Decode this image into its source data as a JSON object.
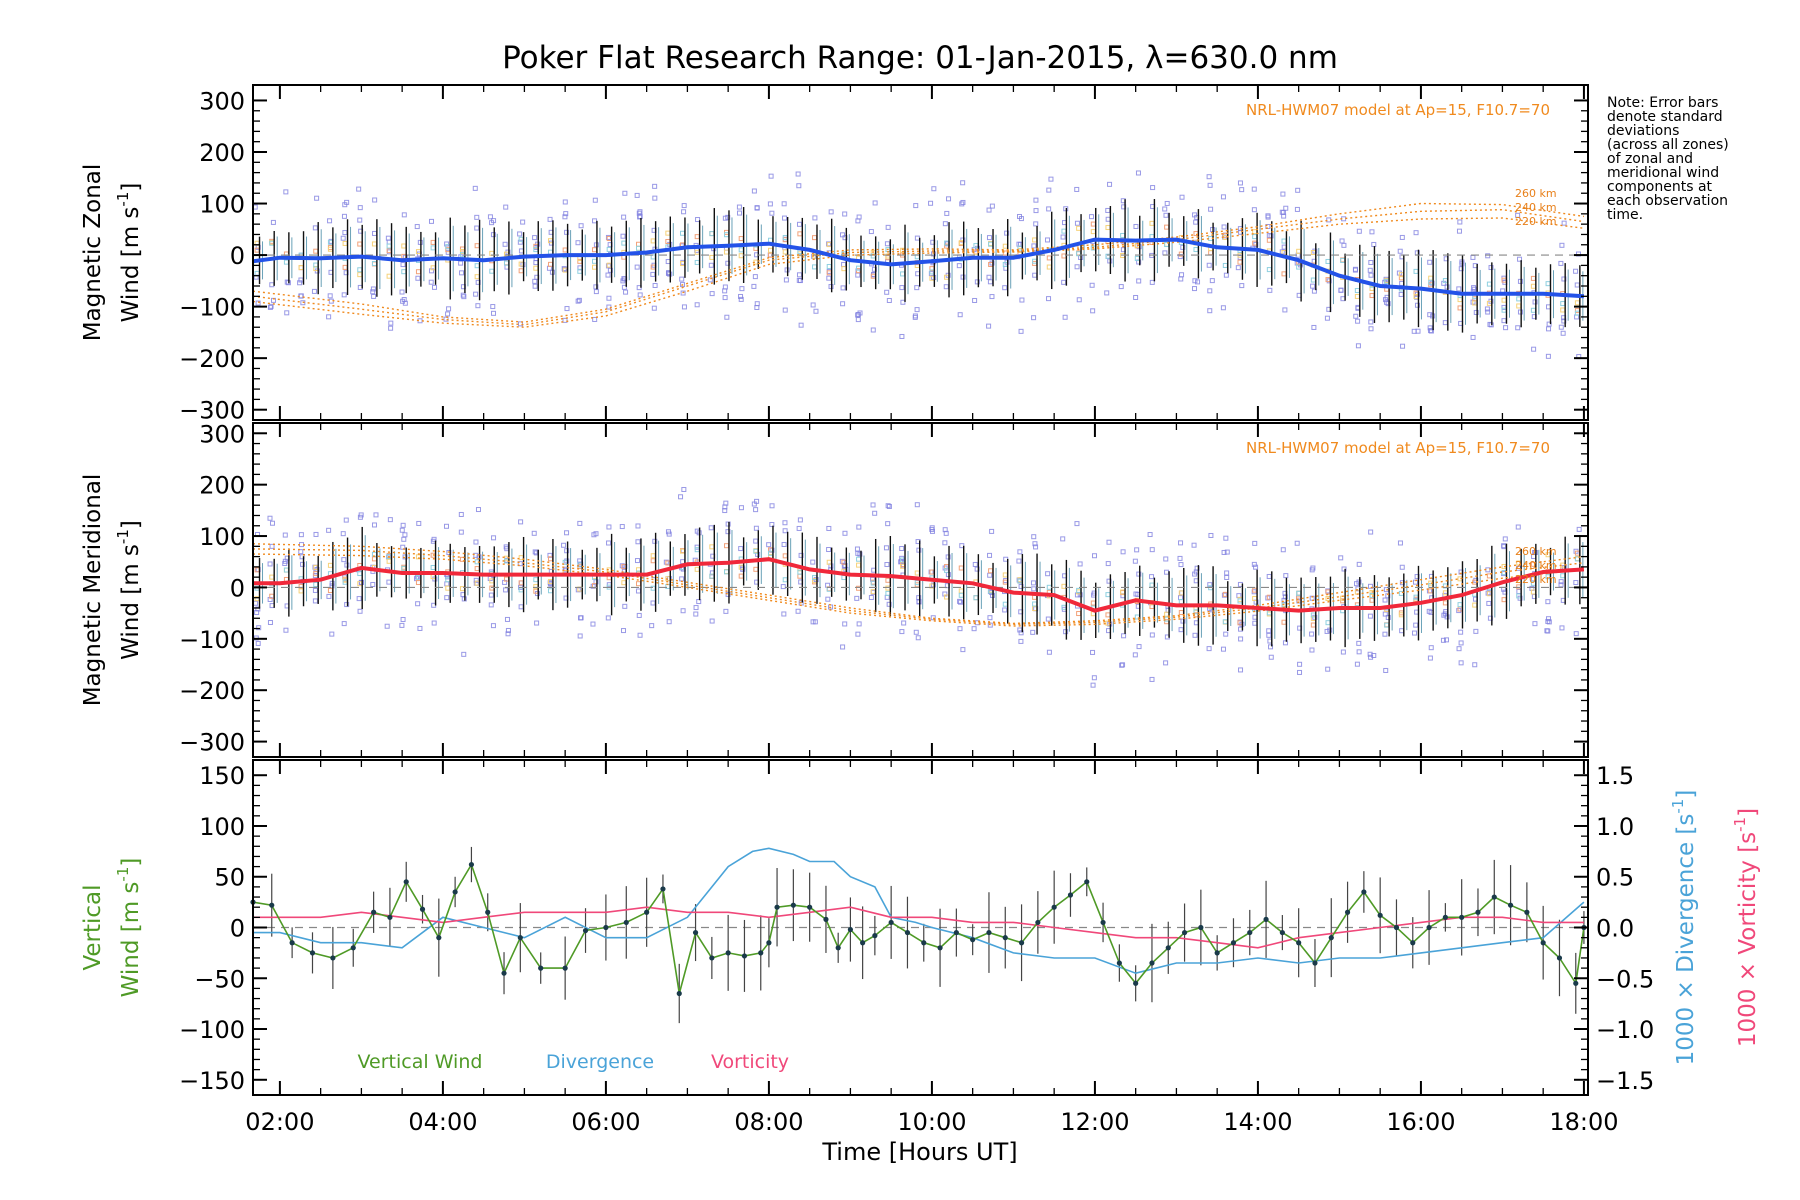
{
  "title": "Poker Flat Research Range: 01-Jan-2015, λ=630.0 nm",
  "note": [
    "Note: Error bars",
    "denote standard",
    "deviations",
    "(across all zones)",
    "of zonal and",
    "meridional wind",
    "components at",
    "each observation",
    "time."
  ],
  "colors": {
    "zonal": "#2352e8",
    "meridional": "#f0283a",
    "vertical": "#4f9a26",
    "divergence": "#4aa3d8",
    "vorticity": "#f0487a",
    "model": "#f08a1e",
    "scatter": "#8080e0"
  },
  "chart_data": [
    {
      "type": "line",
      "panel": "zonal",
      "ylabel_line1": "Magnetic Zonal",
      "ylabel_line2": "Wind [m s",
      "ylabel_sup": "-1",
      "ylabel_end": "]",
      "ylim": [
        -320,
        330
      ],
      "yticks": [
        "300",
        "200",
        "100",
        "0",
        "−100",
        "−200",
        "−300"
      ],
      "ytick_values": [
        300,
        200,
        100,
        0,
        -100,
        -200,
        -300
      ],
      "model_label": "NRL-HWM07 model at Ap=15, F10.7=70",
      "altitude_labels": [
        "260 km",
        "240 km",
        "220 km"
      ],
      "series": [
        {
          "x": [
            1.67,
            2.0,
            2.5,
            3.0,
            3.5,
            4.0,
            4.5,
            5.0,
            5.5,
            6.0,
            6.5,
            7.0,
            7.5,
            8.0,
            8.5,
            9.0,
            9.5,
            10.0,
            10.5,
            11.0,
            11.5,
            12.0,
            12.5,
            13.0,
            13.5,
            14.0,
            14.5,
            15.0,
            15.5,
            16.0,
            16.5,
            17.0,
            17.5,
            18.0
          ],
          "y": [
            -12,
            -5,
            -6,
            -3,
            -10,
            -6,
            -10,
            -3,
            0,
            0,
            5,
            15,
            18,
            22,
            10,
            -10,
            -18,
            -12,
            -5,
            -5,
            10,
            30,
            28,
            30,
            15,
            10,
            -10,
            -40,
            -60,
            -65,
            -75,
            -75,
            -75,
            -80
          ]
        }
      ],
      "models": [
        {
          "name": "260 km",
          "x": [
            1.67,
            3,
            4,
            5,
            6,
            7,
            8,
            9,
            10,
            11,
            12,
            13,
            14,
            15,
            16,
            17,
            18
          ],
          "y": [
            -70,
            -95,
            -120,
            -130,
            -105,
            -55,
            -5,
            10,
            12,
            10,
            20,
            35,
            55,
            80,
            100,
            98,
            75
          ]
        },
        {
          "name": "240 km",
          "x": [
            1.67,
            3,
            4,
            5,
            6,
            7,
            8,
            9,
            10,
            11,
            12,
            13,
            14,
            15,
            16,
            17,
            18
          ],
          "y": [
            -80,
            -105,
            -125,
            -135,
            -110,
            -60,
            -10,
            5,
            8,
            8,
            15,
            30,
            50,
            70,
            85,
            88,
            65
          ]
        },
        {
          "name": "220 km",
          "x": [
            1.67,
            3,
            4,
            5,
            6,
            7,
            8,
            9,
            10,
            11,
            12,
            13,
            14,
            15,
            16,
            17,
            18
          ],
          "y": [
            -90,
            -115,
            -132,
            -140,
            -118,
            -70,
            -18,
            0,
            4,
            6,
            12,
            25,
            42,
            60,
            70,
            72,
            52
          ]
        }
      ]
    },
    {
      "type": "line",
      "panel": "meridional",
      "ylabel_line1": "Magnetic Meridional",
      "ylabel_line2": "Wind [m s",
      "ylabel_sup": "-1",
      "ylabel_end": "]",
      "ylim": [
        -330,
        320
      ],
      "yticks": [
        "300",
        "200",
        "100",
        "0",
        "−100",
        "−200",
        "−300"
      ],
      "ytick_values": [
        300,
        200,
        100,
        0,
        -100,
        -200,
        -300
      ],
      "model_label": "NRL-HWM07 model at Ap=15, F10.7=70",
      "altitude_labels": [
        "260 km",
        "240 km",
        "220 km"
      ],
      "series": [
        {
          "x": [
            1.67,
            2.0,
            2.5,
            3.0,
            3.5,
            4.0,
            4.5,
            5.0,
            5.5,
            6.0,
            6.5,
            7.0,
            7.5,
            8.0,
            8.5,
            9.0,
            9.5,
            10.0,
            10.5,
            11.0,
            11.5,
            12.0,
            12.5,
            13.0,
            13.5,
            14.0,
            14.5,
            15.0,
            15.5,
            16.0,
            16.5,
            17.0,
            17.5,
            18.0
          ],
          "y": [
            8,
            8,
            15,
            38,
            28,
            28,
            25,
            25,
            25,
            25,
            25,
            45,
            48,
            55,
            35,
            25,
            22,
            15,
            8,
            -10,
            -15,
            -45,
            -25,
            -35,
            -35,
            -40,
            -45,
            -40,
            -40,
            -30,
            -15,
            10,
            30,
            35
          ]
        }
      ],
      "models": [
        {
          "name": "260 km",
          "x": [
            1.67,
            3,
            4,
            5,
            6,
            7,
            8,
            9,
            10,
            11,
            12,
            13,
            14,
            15,
            16,
            17,
            18
          ],
          "y": [
            85,
            80,
            70,
            55,
            35,
            10,
            -15,
            -40,
            -60,
            -70,
            -65,
            -55,
            -35,
            -10,
            15,
            40,
            60
          ]
        },
        {
          "name": "240 km",
          "x": [
            1.67,
            3,
            4,
            5,
            6,
            7,
            8,
            9,
            10,
            11,
            12,
            13,
            14,
            15,
            16,
            17,
            18
          ],
          "y": [
            75,
            72,
            62,
            48,
            30,
            5,
            -20,
            -45,
            -62,
            -72,
            -68,
            -58,
            -40,
            -18,
            5,
            30,
            48
          ]
        },
        {
          "name": "220 km",
          "x": [
            1.67,
            3,
            4,
            5,
            6,
            7,
            8,
            9,
            10,
            11,
            12,
            13,
            14,
            15,
            16,
            17,
            18
          ],
          "y": [
            65,
            62,
            55,
            42,
            24,
            0,
            -25,
            -50,
            -65,
            -75,
            -72,
            -62,
            -46,
            -25,
            -5,
            18,
            35
          ]
        }
      ]
    },
    {
      "type": "line",
      "panel": "vertical",
      "ylabel_line1": "Vertical",
      "ylabel_line2": "Wind [m s",
      "ylabel_sup": "-1",
      "ylabel_end": "]",
      "ylim": [
        -165,
        165
      ],
      "yticks": [
        "150",
        "100",
        "50",
        "0",
        "−50",
        "−100",
        "−150"
      ],
      "ytick_values": [
        150,
        100,
        50,
        0,
        -50,
        -100,
        -150
      ],
      "y2label_div": "1000 × Divergence [s",
      "y2label_vor": "1000 × Vorticity [s",
      "y2lim": [
        -1.65,
        1.65
      ],
      "y2ticks": [
        "1.5",
        "1.0",
        "0.5",
        "0.0",
        "−0.5",
        "−1.0",
        "−1.5"
      ],
      "y2tick_values": [
        1.5,
        1.0,
        0.5,
        0.0,
        -0.5,
        -1.0,
        -1.5
      ],
      "legend": [
        "Vertical Wind",
        "Divergence",
        "Vorticity"
      ],
      "series": [
        {
          "name": "Vertical Wind",
          "x": [
            1.67,
            1.9,
            2.15,
            2.4,
            2.65,
            2.9,
            3.15,
            3.35,
            3.55,
            3.75,
            3.95,
            4.15,
            4.35,
            4.55,
            4.75,
            4.95,
            5.2,
            5.5,
            5.75,
            6.0,
            6.25,
            6.5,
            6.7,
            6.9,
            7.1,
            7.3,
            7.5,
            7.7,
            7.9,
            8.0,
            8.1,
            8.3,
            8.5,
            8.7,
            8.85,
            9.0,
            9.15,
            9.3,
            9.5,
            9.7,
            9.9,
            10.1,
            10.3,
            10.5,
            10.7,
            10.9,
            11.1,
            11.3,
            11.5,
            11.7,
            11.9,
            12.1,
            12.3,
            12.5,
            12.7,
            12.9,
            13.1,
            13.3,
            13.5,
            13.7,
            13.9,
            14.1,
            14.3,
            14.5,
            14.7,
            14.9,
            15.1,
            15.3,
            15.5,
            15.7,
            15.9,
            16.1,
            16.3,
            16.5,
            16.7,
            16.9,
            17.1,
            17.3,
            17.5,
            17.7,
            17.9,
            18.0
          ],
          "y": [
            25,
            22,
            -15,
            -25,
            -30,
            -20,
            15,
            10,
            45,
            18,
            -10,
            35,
            62,
            15,
            -45,
            -10,
            -40,
            -40,
            -3,
            0,
            5,
            15,
            38,
            -65,
            -5,
            -30,
            -25,
            -28,
            -25,
            -15,
            20,
            22,
            20,
            8,
            -20,
            -2,
            -15,
            -8,
            5,
            -5,
            -15,
            -20,
            -5,
            -12,
            -5,
            -10,
            -15,
            5,
            20,
            32,
            45,
            5,
            -35,
            -55,
            -35,
            -20,
            -5,
            0,
            -25,
            -15,
            -5,
            8,
            -5,
            -15,
            -35,
            -10,
            15,
            35,
            12,
            0,
            -15,
            0,
            10,
            10,
            15,
            30,
            22,
            15,
            -15,
            -30,
            -55,
            0
          ]
        },
        {
          "name": "Divergence",
          "x": [
            1.67,
            2.0,
            2.5,
            3.0,
            3.5,
            4.0,
            4.5,
            5.0,
            5.5,
            6.0,
            6.5,
            7.0,
            7.5,
            7.8,
            8.0,
            8.3,
            8.5,
            8.8,
            9.0,
            9.3,
            9.5,
            9.8,
            10.0,
            10.5,
            11.0,
            11.5,
            12.0,
            12.5,
            13.0,
            13.5,
            14.0,
            14.5,
            15.0,
            15.5,
            16.0,
            16.5,
            17.0,
            17.5,
            18.0
          ],
          "y": [
            -0.05,
            -0.05,
            -0.15,
            -0.15,
            -0.2,
            0.1,
            0.0,
            -0.1,
            0.1,
            -0.1,
            -0.1,
            0.1,
            0.6,
            0.75,
            0.78,
            0.72,
            0.65,
            0.65,
            0.5,
            0.4,
            0.1,
            0.05,
            0.0,
            -0.1,
            -0.25,
            -0.3,
            -0.3,
            -0.45,
            -0.35,
            -0.35,
            -0.3,
            -0.35,
            -0.3,
            -0.3,
            -0.25,
            -0.2,
            -0.15,
            -0.1,
            0.25
          ]
        },
        {
          "name": "Vorticity",
          "x": [
            1.67,
            2.0,
            2.5,
            3.0,
            3.5,
            4.0,
            4.5,
            5.0,
            5.5,
            6.0,
            6.5,
            7.0,
            7.5,
            8.0,
            8.5,
            9.0,
            9.5,
            10.0,
            10.5,
            11.0,
            11.5,
            12.0,
            12.5,
            13.0,
            13.5,
            14.0,
            14.5,
            15.0,
            15.5,
            16.0,
            16.5,
            17.0,
            17.5,
            18.0
          ],
          "y": [
            0.1,
            0.1,
            0.1,
            0.15,
            0.1,
            0.05,
            0.1,
            0.15,
            0.15,
            0.15,
            0.2,
            0.15,
            0.15,
            0.1,
            0.15,
            0.2,
            0.1,
            0.1,
            0.05,
            0.05,
            0.0,
            -0.05,
            -0.1,
            -0.1,
            -0.15,
            -0.2,
            -0.1,
            -0.05,
            0.0,
            0.05,
            0.1,
            0.1,
            0.05,
            0.05
          ]
        }
      ]
    }
  ],
  "xaxis": {
    "xlim": [
      1.67,
      18.05
    ],
    "tick_values": [
      2,
      4,
      6,
      8,
      10,
      12,
      14,
      16,
      18
    ],
    "tick_labels": [
      "02:00",
      "04:00",
      "06:00",
      "08:00",
      "10:00",
      "12:00",
      "14:00",
      "16:00",
      "18:00"
    ],
    "xlabel": "Time [Hours UT]"
  }
}
